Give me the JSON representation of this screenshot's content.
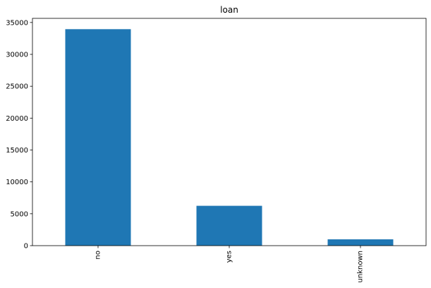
{
  "chart_data": {
    "type": "bar",
    "title": "loan",
    "xlabel": "",
    "ylabel": "",
    "categories": [
      "no",
      "yes",
      "unknown"
    ],
    "values": [
      33950,
      6248,
      990
    ],
    "ylim": [
      0,
      35647
    ],
    "yticks": [
      0,
      5000,
      10000,
      15000,
      20000,
      25000,
      30000,
      35000
    ],
    "ytick_labels": [
      "0",
      "5000",
      "10000",
      "15000",
      "20000",
      "25000",
      "30000",
      "35000"
    ],
    "bar_color": "#1f77b4",
    "grid": false,
    "legend": "none"
  }
}
